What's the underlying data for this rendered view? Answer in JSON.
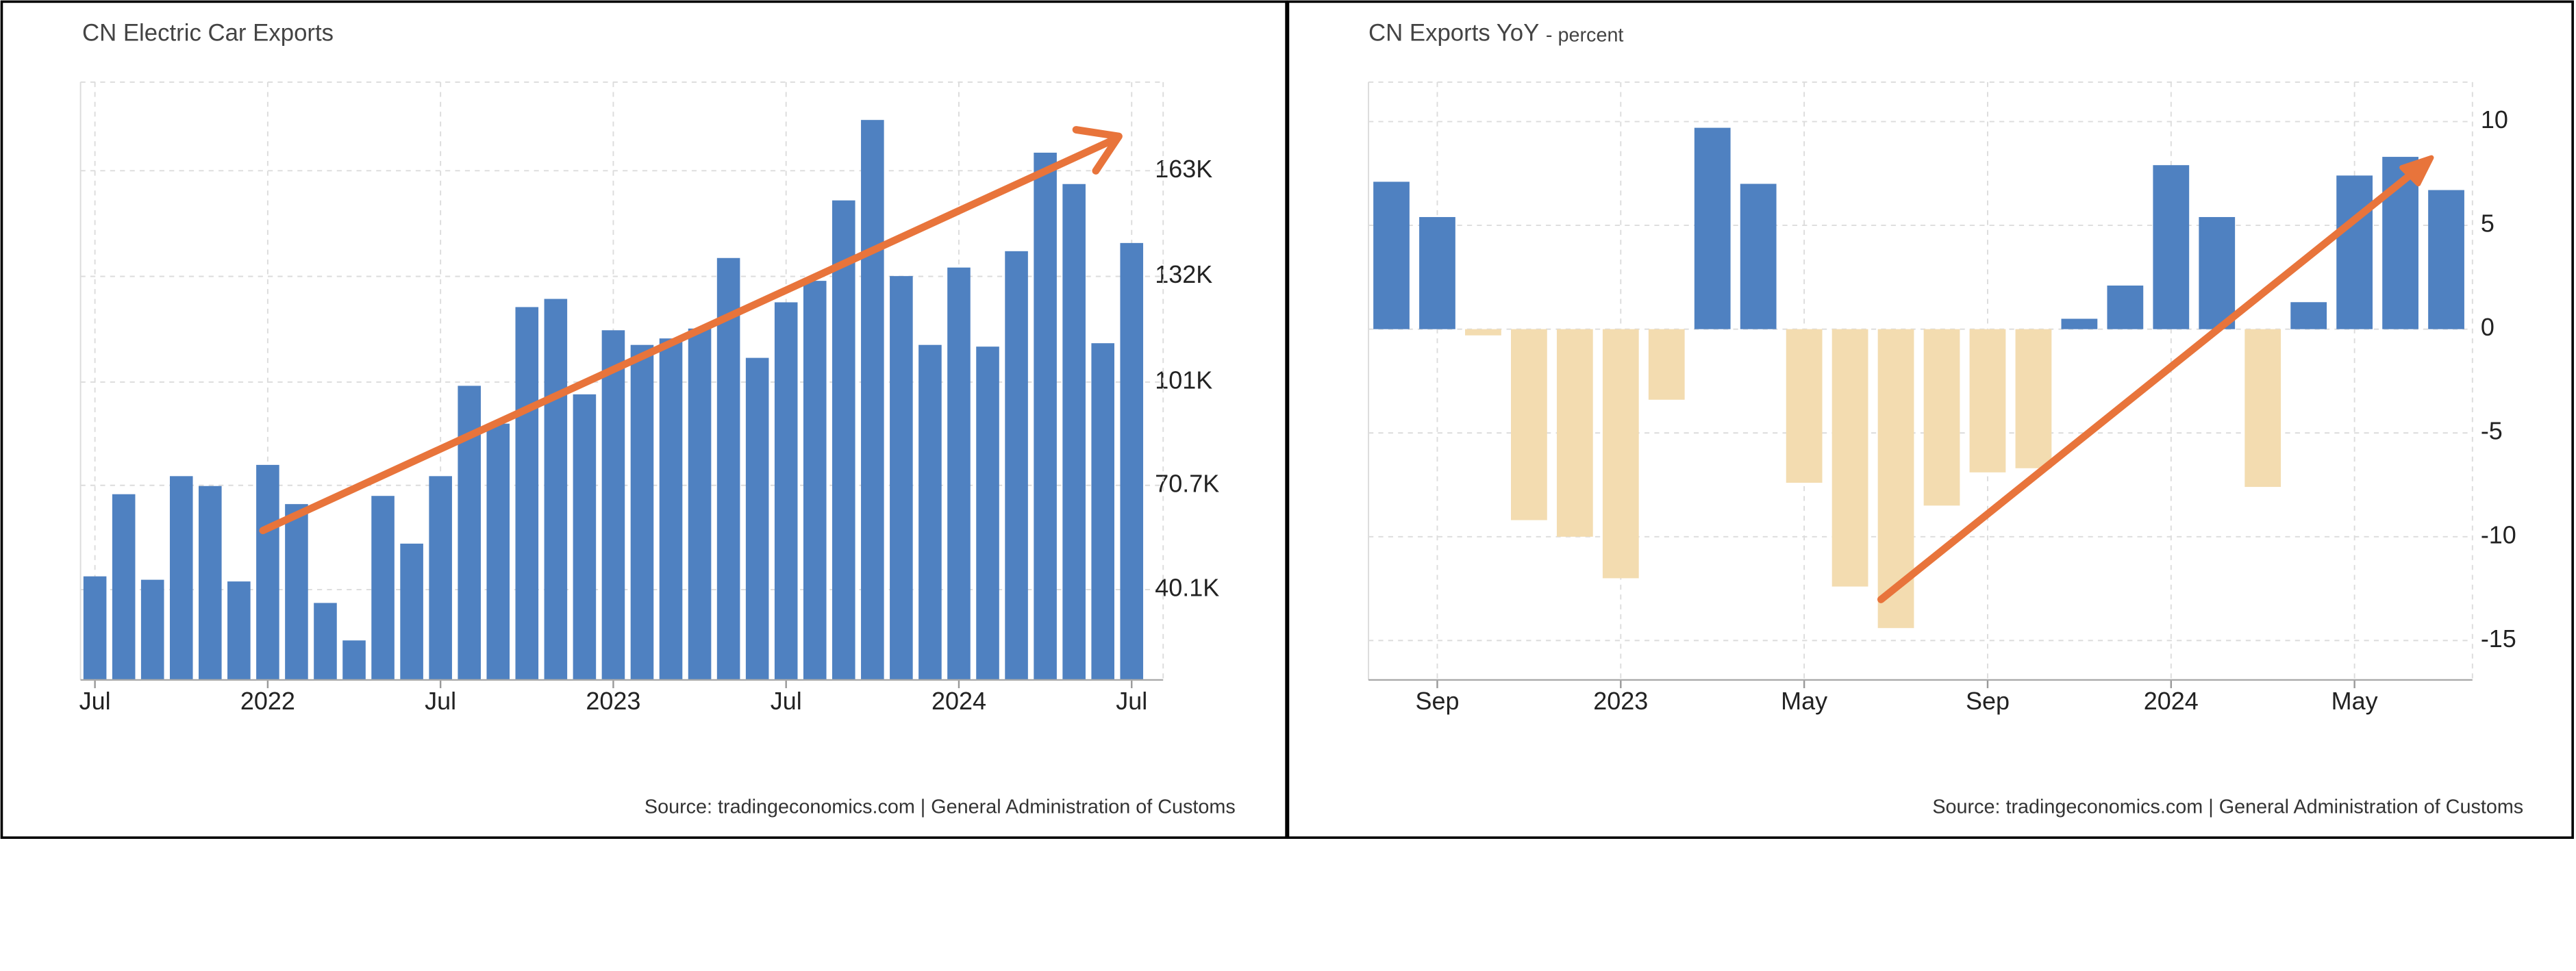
{
  "chart_data": [
    {
      "type": "bar",
      "title": "CN Electric Car Exports",
      "source": "Source: tradingeconomics.com | General Administration of Customs",
      "categories": [
        "Jul",
        null,
        null,
        null,
        null,
        null,
        "2022",
        null,
        null,
        null,
        null,
        null,
        "Jul",
        null,
        null,
        null,
        null,
        null,
        "2023",
        null,
        null,
        null,
        null,
        null,
        "Jul",
        null,
        null,
        null,
        null,
        null,
        "2024",
        null,
        null,
        null,
        null,
        null,
        "Jul"
      ],
      "values": [
        44000,
        68100,
        43000,
        73400,
        70500,
        42500,
        76700,
        65200,
        36200,
        25200,
        67600,
        53600,
        73400,
        99900,
        88800,
        123000,
        125400,
        97400,
        116200,
        111900,
        113800,
        116700,
        137400,
        108100,
        124400,
        130700,
        154300,
        177900,
        132100,
        111900,
        134600,
        111400,
        139400,
        168300,
        159100,
        112400,
        141800
      ],
      "color": "#4f81c1",
      "ylim": [
        13600,
        189000
      ],
      "yticks": [
        {
          "value": 40100,
          "label": "40.1K"
        },
        {
          "value": 70700,
          "label": "70.7K"
        },
        {
          "value": 101000,
          "label": "101K"
        },
        {
          "value": 132000,
          "label": "132K"
        },
        {
          "value": 163000,
          "label": "163K"
        }
      ],
      "grid": true
    },
    {
      "type": "bar",
      "title": "CN Exports YoY",
      "subtitle": "- percent",
      "source": "Source: tradingeconomics.com | General Administration of Customs",
      "categories": [
        null,
        "Sep",
        null,
        null,
        null,
        "2023",
        null,
        null,
        null,
        "May",
        null,
        null,
        null,
        "Sep",
        null,
        null,
        null,
        "2024",
        null,
        null,
        null,
        "May",
        null,
        null
      ],
      "values": [
        7.1,
        5.4,
        -0.3,
        -9.2,
        -10.0,
        -12.0,
        -3.4,
        9.7,
        7.0,
        -7.4,
        -12.4,
        -14.4,
        -8.5,
        -6.9,
        -6.7,
        0.5,
        2.1,
        7.9,
        5.4,
        -7.6,
        1.3,
        7.4,
        8.3,
        6.7
      ],
      "color": "#4f81c1",
      "negative_color": "#f3dcb0",
      "ylim": [
        -16.9,
        11.9
      ],
      "yticks": [
        -15,
        -10,
        -5,
        0,
        5,
        10
      ],
      "grid": true
    }
  ]
}
